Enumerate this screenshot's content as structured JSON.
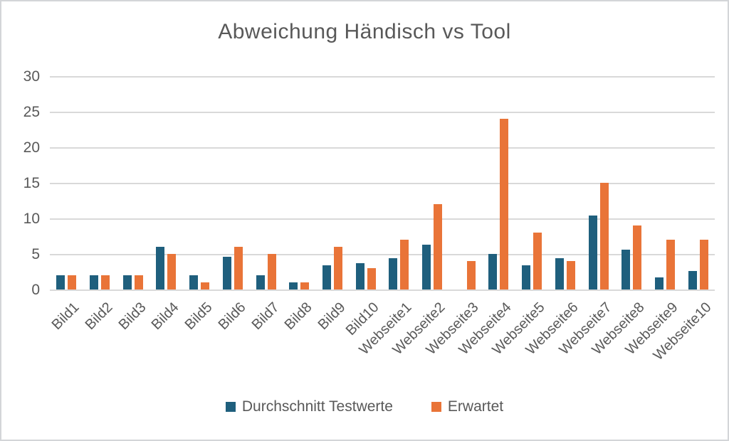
{
  "title": "Abweichung Händisch vs Tool",
  "colors": {
    "series1": "#1f5f7d",
    "series2": "#e97438",
    "text": "#595959",
    "gridline": "#d9d9d9",
    "border": "#d3d5d8"
  },
  "chart_data": {
    "type": "bar",
    "title": "Abweichung Händisch vs Tool",
    "xlabel": "",
    "ylabel": "",
    "ylim": [
      0,
      30
    ],
    "yticks": [
      0,
      5,
      10,
      15,
      20,
      25,
      30
    ],
    "grid": true,
    "legend_position": "bottom",
    "categories": [
      "Bild1",
      "Bild2",
      "Bild3",
      "Bild4",
      "Bild5",
      "Bild6",
      "Bild7",
      "Bild8",
      "Bild9",
      "Bild10",
      "Webseite1",
      "Webseite2",
      "Webseite3",
      "Webseite4",
      "Webseite5",
      "Webseite6",
      "Webseite7",
      "Webseite8",
      "Webseite9",
      "Webseite10"
    ],
    "series": [
      {
        "name": "Durchschnitt Testwerte",
        "color": "#1f5f7d",
        "values": [
          2,
          2,
          2,
          6,
          2,
          4.6,
          2,
          1,
          3.4,
          3.7,
          4.4,
          6.3,
          0,
          5,
          3.4,
          4.4,
          10.4,
          5.6,
          1.7,
          2.6
        ]
      },
      {
        "name": "Erwartet",
        "color": "#e97438",
        "values": [
          2,
          2,
          2,
          5,
          1,
          6,
          5,
          1,
          6,
          3,
          7,
          12,
          4,
          24,
          8,
          4,
          15,
          9,
          7,
          7
        ]
      }
    ]
  }
}
